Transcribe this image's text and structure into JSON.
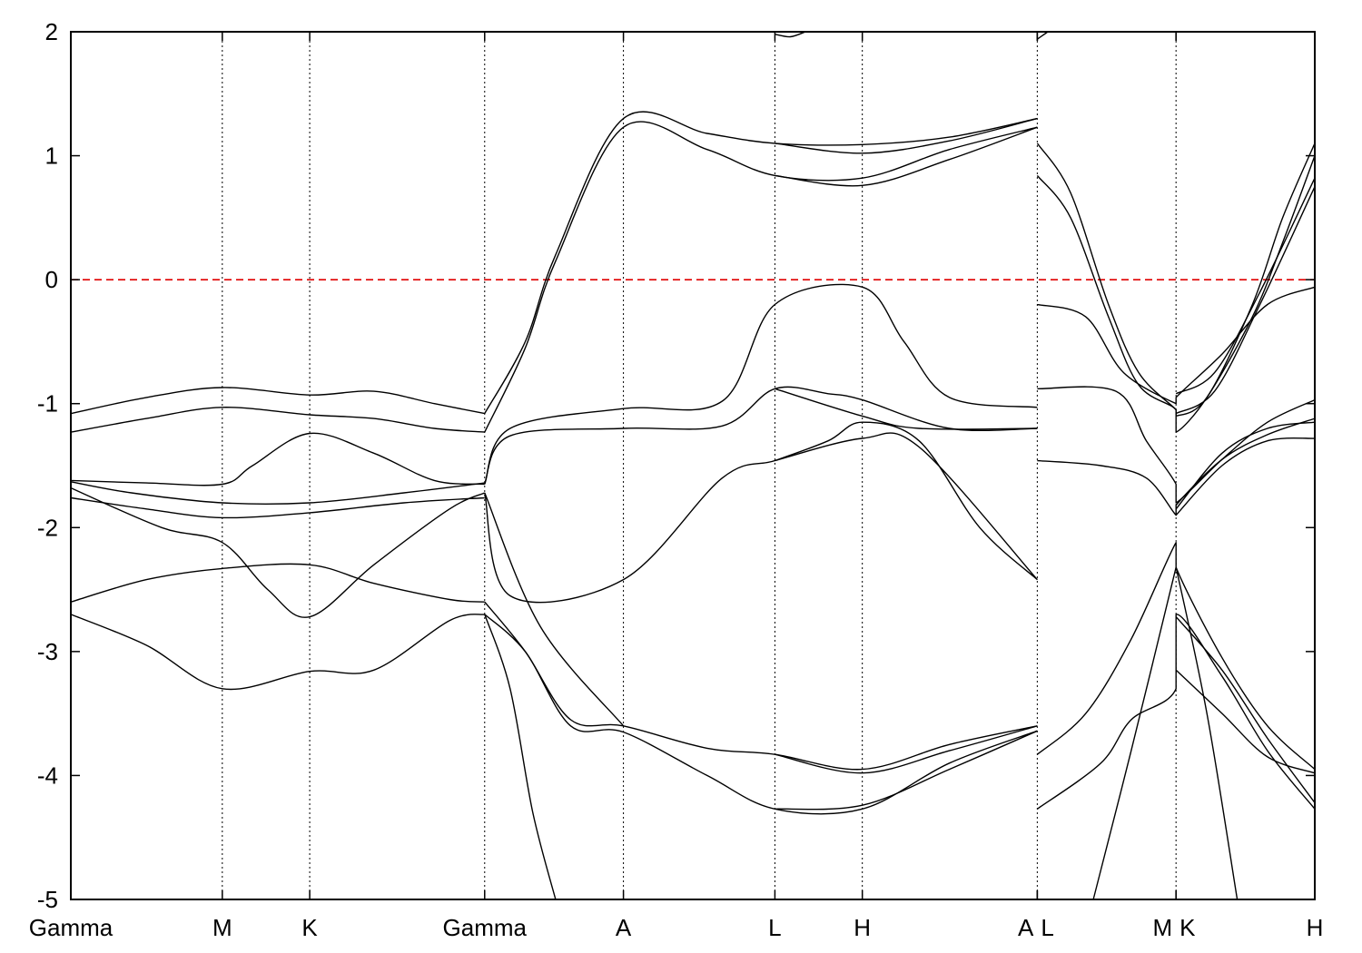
{
  "chart_data": {
    "type": "line",
    "title": "",
    "xlabel": "",
    "ylabel": "",
    "ylim": [
      -5,
      2
    ],
    "yticks": [
      -5,
      -4,
      -3,
      -2,
      -1,
      0,
      1,
      2
    ],
    "kpath": [
      {
        "label": "Gamma",
        "x": 0.0
      },
      {
        "label": "M",
        "x": 1.0
      },
      {
        "label": "K",
        "x": 1.577
      },
      {
        "label": "Gamma",
        "x": 2.732
      },
      {
        "label": "A",
        "x": 3.648
      },
      {
        "label": "L",
        "x": 4.648
      },
      {
        "label": "H",
        "x": 5.225
      },
      {
        "label": "A",
        "x": 6.38
      },
      {
        "label": "L",
        "x": 6.38
      },
      {
        "label": "M",
        "x": 7.296
      },
      {
        "label": "K",
        "x": 7.296
      },
      {
        "label": "H",
        "x": 8.212
      }
    ],
    "xlim": [
      0,
      8.212
    ],
    "fermi_level": {
      "y": 0,
      "color": "#e00000",
      "style": "dashed"
    },
    "line_color": "#000000",
    "grid": false,
    "legend": "none",
    "series": [
      {
        "segments": [
          [
            [
              0,
              -1.08
            ],
            [
              0.5,
              -0.95
            ],
            [
              1.0,
              -0.87
            ],
            [
              1.577,
              -0.93
            ],
            [
              2.0,
              -0.9
            ],
            [
              2.4,
              -1.0
            ],
            [
              2.732,
              -1.08
            ]
          ],
          [
            [
              2.732,
              -1.08
            ],
            [
              3.0,
              -0.5
            ],
            [
              3.2,
              0.2
            ],
            [
              3.648,
              1.3
            ],
            [
              4.2,
              1.18
            ],
            [
              4.648,
              1.1
            ],
            [
              5.225,
              1.09
            ],
            [
              5.8,
              1.15
            ],
            [
              6.38,
              1.3
            ]
          ],
          [
            [
              6.38,
              1.1
            ],
            [
              6.6,
              0.7
            ],
            [
              6.85,
              -0.2
            ],
            [
              7.05,
              -0.75
            ],
            [
              7.296,
              -1.05
            ],
            [
              7.296,
              -1.1
            ],
            [
              7.5,
              -0.95
            ],
            [
              7.8,
              -0.2
            ],
            [
              8.0,
              0.5
            ],
            [
              8.212,
              1.1
            ]
          ]
        ]
      },
      {
        "segments": [
          [
            [
              0,
              -1.23
            ],
            [
              0.5,
              -1.12
            ],
            [
              1.0,
              -1.03
            ],
            [
              1.577,
              -1.09
            ],
            [
              2.0,
              -1.12
            ],
            [
              2.4,
              -1.2
            ],
            [
              2.732,
              -1.23
            ]
          ],
          [
            [
              2.732,
              -1.23
            ],
            [
              3.0,
              -0.55
            ],
            [
              3.2,
              0.15
            ],
            [
              3.648,
              1.23
            ],
            [
              4.2,
              1.05
            ],
            [
              4.648,
              0.84
            ],
            [
              5.225,
              0.82
            ],
            [
              5.8,
              1.05
            ],
            [
              6.38,
              1.23
            ]
          ],
          [
            [
              6.38,
              0.84
            ],
            [
              6.6,
              0.5
            ],
            [
              6.85,
              -0.3
            ],
            [
              7.05,
              -0.85
            ],
            [
              7.296,
              -1.05
            ],
            [
              7.296,
              -1.23
            ],
            [
              7.5,
              -0.95
            ],
            [
              7.8,
              -0.3
            ],
            [
              8.0,
              0.3
            ],
            [
              8.212,
              1.0
            ]
          ]
        ]
      },
      {
        "segments": [
          [
            [
              4.648,
              1.1
            ],
            [
              5.225,
              1.02
            ],
            [
              5.8,
              1.12
            ],
            [
              6.38,
              1.3
            ]
          ],
          [
            [
              4.648,
              0.84
            ],
            [
              5.225,
              0.76
            ],
            [
              5.8,
              0.97
            ],
            [
              6.38,
              1.23
            ]
          ],
          [
            [
              7.296,
              -0.92
            ],
            [
              7.55,
              -0.75
            ],
            [
              7.85,
              -0.1
            ],
            [
              8.212,
              0.82
            ]
          ],
          [
            [
              7.296,
              -1.08
            ],
            [
              7.55,
              -0.9
            ],
            [
              7.85,
              -0.2
            ],
            [
              8.212,
              0.75
            ]
          ],
          [
            [
              4.648,
              1.98
            ],
            [
              4.75,
              1.96
            ],
            [
              4.85,
              2.02
            ]
          ],
          [
            [
              6.38,
              1.94
            ],
            [
              6.45,
              2.0
            ]
          ]
        ]
      },
      {
        "segments": [
          [
            [
              0,
              -1.62
            ],
            [
              0.5,
              -1.64
            ],
            [
              1.0,
              -1.65
            ],
            [
              1.2,
              -1.5
            ],
            [
              1.577,
              -1.24
            ],
            [
              2.0,
              -1.4
            ],
            [
              2.4,
              -1.62
            ],
            [
              2.732,
              -1.65
            ]
          ],
          [
            [
              2.732,
              -1.65
            ],
            [
              2.9,
              -1.2
            ],
            [
              3.648,
              -1.04
            ],
            [
              4.3,
              -0.98
            ],
            [
              4.648,
              -0.2
            ],
            [
              5.225,
              -0.06
            ],
            [
              5.5,
              -0.5
            ],
            [
              5.8,
              -0.95
            ],
            [
              6.38,
              -1.03
            ]
          ],
          [
            [
              6.38,
              -0.2
            ],
            [
              6.7,
              -0.3
            ],
            [
              6.95,
              -0.75
            ],
            [
              7.296,
              -1.0
            ],
            [
              7.296,
              -0.95
            ],
            [
              7.6,
              -0.6
            ],
            [
              7.9,
              -0.2
            ],
            [
              8.212,
              -0.06
            ]
          ]
        ]
      },
      {
        "segments": [
          [
            [
              0,
              -1.63
            ],
            [
              0.4,
              -1.72
            ],
            [
              1.0,
              -1.8
            ],
            [
              1.577,
              -1.8
            ],
            [
              2.2,
              -1.72
            ],
            [
              2.732,
              -1.64
            ]
          ],
          [
            [
              2.732,
              -1.64
            ],
            [
              2.9,
              -1.26
            ],
            [
              3.648,
              -1.2
            ],
            [
              4.3,
              -1.18
            ],
            [
              4.648,
              -0.88
            ],
            [
              5.0,
              -0.92
            ],
            [
              5.225,
              -0.97
            ],
            [
              5.8,
              -1.2
            ],
            [
              6.38,
              -1.2
            ]
          ],
          [
            [
              6.38,
              -0.88
            ],
            [
              6.9,
              -0.9
            ],
            [
              7.1,
              -1.3
            ],
            [
              7.296,
              -1.65
            ],
            [
              7.296,
              -1.8
            ],
            [
              7.6,
              -1.45
            ],
            [
              7.9,
              -1.15
            ],
            [
              8.212,
              -0.97
            ]
          ]
        ]
      },
      {
        "segments": [
          [
            [
              0,
              -1.68
            ],
            [
              0.6,
              -2.0
            ],
            [
              1.0,
              -2.12
            ],
            [
              1.3,
              -2.5
            ],
            [
              1.577,
              -2.72
            ],
            [
              2.0,
              -2.3
            ],
            [
              2.5,
              -1.85
            ],
            [
              2.732,
              -1.72
            ]
          ],
          [
            [
              2.732,
              -1.72
            ],
            [
              2.9,
              -2.55
            ],
            [
              3.648,
              -2.42
            ],
            [
              4.3,
              -1.6
            ],
            [
              4.648,
              -1.46
            ],
            [
              5.0,
              -1.3
            ],
            [
              5.225,
              -1.15
            ],
            [
              5.6,
              -1.3
            ],
            [
              6.0,
              -2.0
            ],
            [
              6.38,
              -2.42
            ]
          ],
          [
            [
              6.38,
              -1.46
            ],
            [
              6.8,
              -1.5
            ],
            [
              7.1,
              -1.6
            ],
            [
              7.296,
              -1.9
            ],
            [
              7.296,
              -1.82
            ],
            [
              7.6,
              -1.45
            ],
            [
              7.9,
              -1.25
            ],
            [
              8.212,
              -1.12
            ]
          ]
        ]
      },
      {
        "segments": [
          [
            [
              0,
              -1.76
            ],
            [
              0.5,
              -1.85
            ],
            [
              1.0,
              -1.92
            ],
            [
              1.577,
              -1.88
            ],
            [
              2.2,
              -1.8
            ],
            [
              2.732,
              -1.76
            ]
          ],
          [
            [
              4.648,
              -0.88
            ],
            [
              5.225,
              -1.1
            ],
            [
              5.6,
              -1.2
            ],
            [
              6.38,
              -1.2
            ]
          ],
          [
            [
              4.648,
              -1.46
            ],
            [
              5.225,
              -1.28
            ],
            [
              5.6,
              -1.35
            ],
            [
              6.38,
              -2.42
            ]
          ],
          [
            [
              7.296,
              -1.9
            ],
            [
              7.6,
              -1.5
            ],
            [
              7.9,
              -1.3
            ],
            [
              8.212,
              -1.28
            ]
          ],
          [
            [
              7.296,
              -1.85
            ],
            [
              7.6,
              -1.4
            ],
            [
              7.9,
              -1.2
            ],
            [
              8.212,
              -1.15
            ]
          ]
        ]
      },
      {
        "segments": [
          [
            [
              0,
              -2.6
            ],
            [
              0.5,
              -2.42
            ],
            [
              1.0,
              -2.33
            ],
            [
              1.577,
              -2.3
            ],
            [
              2.0,
              -2.45
            ],
            [
              2.5,
              -2.58
            ],
            [
              2.732,
              -2.6
            ]
          ],
          [
            [
              2.732,
              -2.6
            ],
            [
              3.0,
              -3.0
            ],
            [
              3.3,
              -3.55
            ],
            [
              3.648,
              -3.6
            ],
            [
              4.2,
              -3.78
            ],
            [
              4.648,
              -3.83
            ],
            [
              5.225,
              -3.95
            ],
            [
              5.8,
              -3.75
            ],
            [
              6.38,
              -3.6
            ]
          ],
          [
            [
              6.38,
              -3.83
            ],
            [
              6.7,
              -3.5
            ],
            [
              7.0,
              -2.9
            ],
            [
              7.296,
              -2.12
            ],
            [
              7.296,
              -2.32
            ],
            [
              7.6,
              -3.05
            ],
            [
              7.9,
              -3.6
            ],
            [
              8.212,
              -3.95
            ]
          ]
        ]
      },
      {
        "segments": [
          [
            [
              0,
              -2.7
            ],
            [
              0.5,
              -2.95
            ],
            [
              1.0,
              -3.3
            ],
            [
              1.577,
              -3.16
            ],
            [
              2.0,
              -3.15
            ],
            [
              2.5,
              -2.75
            ],
            [
              2.732,
              -2.7
            ]
          ],
          [
            [
              2.732,
              -2.7
            ],
            [
              3.0,
              -3.0
            ],
            [
              3.3,
              -3.6
            ],
            [
              3.648,
              -3.65
            ],
            [
              4.2,
              -4.0
            ],
            [
              4.648,
              -4.27
            ],
            [
              5.225,
              -4.27
            ],
            [
              5.8,
              -3.9
            ],
            [
              6.38,
              -3.64
            ]
          ],
          [
            [
              6.38,
              -4.27
            ],
            [
              6.8,
              -3.9
            ],
            [
              7.0,
              -3.55
            ],
            [
              7.296,
              -3.3
            ],
            [
              7.296,
              -2.7
            ],
            [
              7.6,
              -3.2
            ],
            [
              7.9,
              -3.8
            ],
            [
              8.212,
              -4.27
            ]
          ]
        ]
      },
      {
        "segments": [
          [
            [
              2.732,
              -1.72
            ],
            [
              3.1,
              -2.8
            ],
            [
              3.648,
              -3.6
            ]
          ],
          [
            [
              4.648,
              -3.83
            ],
            [
              5.225,
              -3.98
            ],
            [
              5.8,
              -3.8
            ],
            [
              6.38,
              -3.6
            ]
          ],
          [
            [
              4.648,
              -4.27
            ],
            [
              5.225,
              -4.24
            ],
            [
              5.8,
              -3.95
            ],
            [
              6.38,
              -3.64
            ]
          ],
          [
            [
              7.296,
              -2.72
            ],
            [
              7.6,
              -3.15
            ],
            [
              7.9,
              -3.7
            ],
            [
              8.212,
              -4.22
            ]
          ],
          [
            [
              7.296,
              -3.15
            ],
            [
              7.6,
              -3.5
            ],
            [
              7.9,
              -3.85
            ],
            [
              8.212,
              -3.98
            ]
          ]
        ]
      },
      {
        "segments": [
          [
            [
              2.732,
              -2.7
            ],
            [
              2.9,
              -3.3
            ],
            [
              3.05,
              -4.3
            ],
            [
              3.2,
              -5.0
            ]
          ],
          [
            [
              6.75,
              -5.0
            ],
            [
              7.0,
              -3.8
            ],
            [
              7.296,
              -2.32
            ]
          ],
          [
            [
              7.296,
              -2.32
            ],
            [
              7.5,
              -3.5
            ],
            [
              7.7,
              -5.0
            ]
          ]
        ]
      }
    ]
  }
}
